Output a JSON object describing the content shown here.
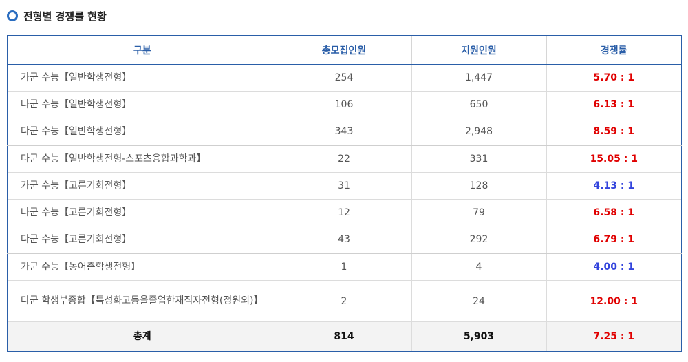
{
  "title": "전형별 경쟁률 현황",
  "colors": {
    "header_blue": "#2a5ea8",
    "ratio_red": "#e00000",
    "ratio_blue": "#3344dd"
  },
  "table": {
    "headers": [
      "구분",
      "총모집인원",
      "지원인원",
      "경쟁률"
    ],
    "rows": [
      {
        "name": "가군 수능【일반학생전형】",
        "quota": "254",
        "applicants": "1,447",
        "ratio": "5.70 : 1",
        "ratio_color": "#e00000"
      },
      {
        "name": "나군 수능【일반학생전형】",
        "quota": "106",
        "applicants": "650",
        "ratio": "6.13 : 1",
        "ratio_color": "#e00000"
      },
      {
        "name": "다군 수능【일반학생전형】",
        "quota": "343",
        "applicants": "2,948",
        "ratio": "8.59 : 1",
        "ratio_color": "#e00000"
      },
      {
        "name": "다군 수능【일반학생전형-스포츠융합과학과】",
        "quota": "22",
        "applicants": "331",
        "ratio": "15.05 : 1",
        "ratio_color": "#e00000"
      },
      {
        "name": "가군 수능【고른기회전형】",
        "quota": "31",
        "applicants": "128",
        "ratio": "4.13 : 1",
        "ratio_color": "#3344dd"
      },
      {
        "name": "나군 수능【고른기회전형】",
        "quota": "12",
        "applicants": "79",
        "ratio": "6.58 : 1",
        "ratio_color": "#e00000"
      },
      {
        "name": "다군 수능【고른기회전형】",
        "quota": "43",
        "applicants": "292",
        "ratio": "6.79 : 1",
        "ratio_color": "#e00000"
      },
      {
        "name": "가군 수능【농어촌학생전형】",
        "quota": "1",
        "applicants": "4",
        "ratio": "4.00 : 1",
        "ratio_color": "#3344dd"
      },
      {
        "name": "다군 학생부종합【특성화고등을졸업한재직자전형(정원외)】",
        "quota": "2",
        "applicants": "24",
        "ratio": "12.00 : 1",
        "ratio_color": "#e00000"
      }
    ],
    "total": {
      "name": "총계",
      "quota": "814",
      "applicants": "5,903",
      "ratio": "7.25 : 1",
      "ratio_color": "#e00000"
    }
  }
}
